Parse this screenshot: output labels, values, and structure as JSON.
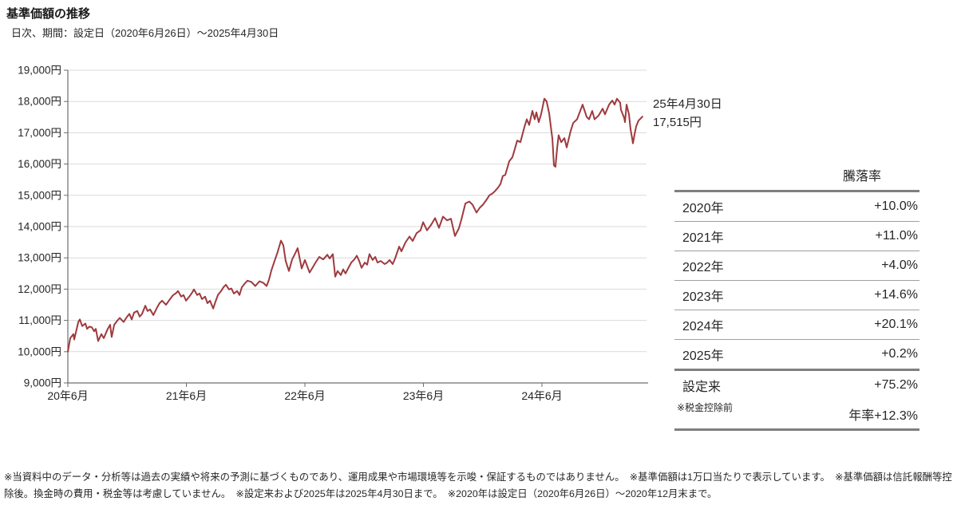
{
  "header": {
    "title": "基準価額の推移",
    "subtitle": "日次、期間：設定日（2020年6月26日）～2025年4月30日"
  },
  "annotation": {
    "date_line": "25年4月30日",
    "value_line": "17,515円"
  },
  "return_table": {
    "header": "騰落率",
    "rows": [
      {
        "label": "2020年",
        "value": "+10.0%"
      },
      {
        "label": "2021年",
        "value": "+11.0%"
      },
      {
        "label": "2022年",
        "value": "+4.0%"
      },
      {
        "label": "2023年",
        "value": "+14.6%"
      },
      {
        "label": "2024年",
        "value": "+20.1%"
      },
      {
        "label": "2025年",
        "value": "+0.2%"
      },
      {
        "label": "設定来",
        "value": "+75.2%"
      },
      {
        "label": "",
        "value": "年率+12.3%"
      }
    ],
    "footnote": "※税金控除前"
  },
  "disclaimer": "※当資料中のデータ・分析等は過去の実績や将来の予測に基づくものであり、運用成果や市場環境等を示唆・保証するものではありません。　※基準価額は1万口当たりで表示しています。　※基準価額は信託報酬等控除後。換金時の費用・税金等は考慮していません。　※設定来および2025年は2025年4月30日まで。　※2020年は設定日（2020年6月26日）～2020年12月末まで。",
  "chart_data": {
    "type": "line",
    "title": "基準価額の推移",
    "series_name": "基準価額（1万口当たり）",
    "unit": "円",
    "x_unit": "年（設定日 2020年6月26日 からの経過年数）",
    "xlim": [
      0,
      4.848
    ],
    "ylim": [
      9000,
      19000
    ],
    "grid": true,
    "line_color": "#9e3a3e",
    "grid_color": "#d9d9d9",
    "axis_color": "#6e6e6e",
    "x_ticks": [
      {
        "t": 0,
        "label": "20年6月"
      },
      {
        "t": 1,
        "label": "21年6月"
      },
      {
        "t": 2,
        "label": "22年6月"
      },
      {
        "t": 3,
        "label": "23年6月"
      },
      {
        "t": 4,
        "label": "24年6月"
      }
    ],
    "y_ticks": [
      {
        "value": 9000,
        "label": "9,000円"
      },
      {
        "value": 10000,
        "label": "10,000円"
      },
      {
        "value": 11000,
        "label": "11,000円"
      },
      {
        "value": 12000,
        "label": "12,000円"
      },
      {
        "value": 13000,
        "label": "13,000円"
      },
      {
        "value": 14000,
        "label": "14,000円"
      },
      {
        "value": 15000,
        "label": "15,000円"
      },
      {
        "value": 16000,
        "label": "16,000円"
      },
      {
        "value": 17000,
        "label": "17,000円"
      },
      {
        "value": 18000,
        "label": "18,000円"
      },
      {
        "value": 19000,
        "label": "19,000円"
      }
    ],
    "end_point": {
      "date": "25年4月30日",
      "value": 17515
    },
    "points": [
      [
        0,
        10000
      ],
      [
        0.02,
        10430
      ],
      [
        0.047,
        10560
      ],
      [
        0.054,
        10390
      ],
      [
        0.088,
        10950
      ],
      [
        0.101,
        11030
      ],
      [
        0.121,
        10820
      ],
      [
        0.148,
        10900
      ],
      [
        0.162,
        10730
      ],
      [
        0.182,
        10800
      ],
      [
        0.202,
        10780
      ],
      [
        0.222,
        10650
      ],
      [
        0.236,
        10730
      ],
      [
        0.256,
        10340
      ],
      [
        0.283,
        10560
      ],
      [
        0.303,
        10430
      ],
      [
        0.337,
        10730
      ],
      [
        0.357,
        10860
      ],
      [
        0.37,
        10470
      ],
      [
        0.391,
        10860
      ],
      [
        0.417,
        10990
      ],
      [
        0.438,
        11080
      ],
      [
        0.471,
        10950
      ],
      [
        0.492,
        11080
      ],
      [
        0.519,
        11210
      ],
      [
        0.539,
        11030
      ],
      [
        0.559,
        11250
      ],
      [
        0.586,
        11300
      ],
      [
        0.606,
        11120
      ],
      [
        0.626,
        11210
      ],
      [
        0.653,
        11470
      ],
      [
        0.673,
        11300
      ],
      [
        0.694,
        11350
      ],
      [
        0.721,
        11170
      ],
      [
        0.754,
        11420
      ],
      [
        0.774,
        11550
      ],
      [
        0.795,
        11630
      ],
      [
        0.828,
        11500
      ],
      [
        0.862,
        11680
      ],
      [
        0.889,
        11810
      ],
      [
        0.909,
        11860
      ],
      [
        0.929,
        11940
      ],
      [
        0.956,
        11760
      ],
      [
        0.976,
        11810
      ],
      [
        0.997,
        11630
      ],
      [
        1.024,
        11760
      ],
      [
        1.044,
        11860
      ],
      [
        1.064,
        11990
      ],
      [
        1.091,
        11810
      ],
      [
        1.111,
        11860
      ],
      [
        1.131,
        11680
      ],
      [
        1.158,
        11760
      ],
      [
        1.178,
        11550
      ],
      [
        1.199,
        11630
      ],
      [
        1.226,
        11380
      ],
      [
        1.246,
        11600
      ],
      [
        1.266,
        11810
      ],
      [
        1.293,
        11940
      ],
      [
        1.313,
        12060
      ],
      [
        1.333,
        12140
      ],
      [
        1.36,
        11990
      ],
      [
        1.38,
        12020
      ],
      [
        1.401,
        11860
      ],
      [
        1.428,
        11940
      ],
      [
        1.448,
        11810
      ],
      [
        1.468,
        12060
      ],
      [
        1.495,
        12190
      ],
      [
        1.515,
        12270
      ],
      [
        1.549,
        12230
      ],
      [
        1.582,
        12100
      ],
      [
        1.616,
        12250
      ],
      [
        1.65,
        12200
      ],
      [
        1.677,
        12100
      ],
      [
        1.697,
        12300
      ],
      [
        1.717,
        12600
      ],
      [
        1.744,
        12900
      ],
      [
        1.771,
        13200
      ],
      [
        1.798,
        13550
      ],
      [
        1.818,
        13400
      ],
      [
        1.838,
        12900
      ],
      [
        1.865,
        12580
      ],
      [
        1.892,
        12950
      ],
      [
        1.919,
        13150
      ],
      [
        1.939,
        13310
      ],
      [
        1.973,
        12660
      ],
      [
        2,
        12930
      ],
      [
        2.04,
        12530
      ],
      [
        2.067,
        12700
      ],
      [
        2.088,
        12840
      ],
      [
        2.121,
        13030
      ],
      [
        2.155,
        12950
      ],
      [
        2.189,
        13100
      ],
      [
        2.209,
        12980
      ],
      [
        2.236,
        13120
      ],
      [
        2.256,
        12400
      ],
      [
        2.276,
        12580
      ],
      [
        2.303,
        12450
      ],
      [
        2.323,
        12630
      ],
      [
        2.343,
        12500
      ],
      [
        2.37,
        12700
      ],
      [
        2.391,
        12850
      ],
      [
        2.417,
        12950
      ],
      [
        2.438,
        13070
      ],
      [
        2.458,
        12900
      ],
      [
        2.478,
        12680
      ],
      [
        2.505,
        12850
      ],
      [
        2.525,
        12780
      ],
      [
        2.545,
        13120
      ],
      [
        2.572,
        12930
      ],
      [
        2.593,
        13030
      ],
      [
        2.613,
        12850
      ],
      [
        2.64,
        12900
      ],
      [
        2.673,
        12800
      ],
      [
        2.694,
        12850
      ],
      [
        2.714,
        12930
      ],
      [
        2.741,
        12800
      ],
      [
        2.761,
        12980
      ],
      [
        2.795,
        13360
      ],
      [
        2.815,
        13210
      ],
      [
        2.848,
        13490
      ],
      [
        2.882,
        13680
      ],
      [
        2.909,
        13540
      ],
      [
        2.943,
        13790
      ],
      [
        2.976,
        13880
      ],
      [
        2.997,
        14140
      ],
      [
        3.03,
        13880
      ],
      [
        3.064,
        14050
      ],
      [
        3.098,
        14270
      ],
      [
        3.131,
        13960
      ],
      [
        3.165,
        14320
      ],
      [
        3.199,
        14200
      ],
      [
        3.232,
        14250
      ],
      [
        3.266,
        13700
      ],
      [
        3.3,
        13950
      ],
      [
        3.32,
        14220
      ],
      [
        3.354,
        14740
      ],
      [
        3.387,
        14800
      ],
      [
        3.414,
        14700
      ],
      [
        3.448,
        14450
      ],
      [
        3.475,
        14600
      ],
      [
        3.502,
        14700
      ],
      [
        3.535,
        14870
      ],
      [
        3.556,
        15000
      ],
      [
        3.583,
        15060
      ],
      [
        3.603,
        15130
      ],
      [
        3.63,
        15250
      ],
      [
        3.65,
        15360
      ],
      [
        3.67,
        15620
      ],
      [
        3.69,
        15650
      ],
      [
        3.71,
        15900
      ],
      [
        3.724,
        16090
      ],
      [
        3.751,
        16220
      ],
      [
        3.771,
        16480
      ],
      [
        3.791,
        16750
      ],
      [
        3.818,
        16700
      ],
      [
        3.852,
        17180
      ],
      [
        3.872,
        17430
      ],
      [
        3.892,
        17250
      ],
      [
        3.919,
        17700
      ],
      [
        3.939,
        17430
      ],
      [
        3.953,
        17650
      ],
      [
        3.973,
        17340
      ],
      [
        3.993,
        17600
      ],
      [
        4.02,
        18090
      ],
      [
        4.04,
        18000
      ],
      [
        4.061,
        17610
      ],
      [
        4.074,
        17220
      ],
      [
        4.088,
        16800
      ],
      [
        4.101,
        15960
      ],
      [
        4.114,
        15910
      ],
      [
        4.128,
        16500
      ],
      [
        4.141,
        16920
      ],
      [
        4.162,
        16700
      ],
      [
        4.189,
        16830
      ],
      [
        4.209,
        16530
      ],
      [
        4.242,
        17050
      ],
      [
        4.263,
        17310
      ],
      [
        4.296,
        17430
      ],
      [
        4.33,
        17770
      ],
      [
        4.343,
        17900
      ],
      [
        4.377,
        17510
      ],
      [
        4.397,
        17430
      ],
      [
        4.424,
        17700
      ],
      [
        4.444,
        17430
      ],
      [
        4.478,
        17550
      ],
      [
        4.512,
        17770
      ],
      [
        4.532,
        17590
      ],
      [
        4.566,
        17900
      ],
      [
        4.593,
        18030
      ],
      [
        4.613,
        17900
      ],
      [
        4.633,
        18090
      ],
      [
        4.66,
        17960
      ],
      [
        4.667,
        17730
      ],
      [
        4.694,
        17470
      ],
      [
        4.7,
        17340
      ],
      [
        4.714,
        17900
      ],
      [
        4.734,
        17590
      ],
      [
        4.747,
        17130
      ],
      [
        4.761,
        16820
      ],
      [
        4.768,
        16660
      ],
      [
        4.781,
        16950
      ],
      [
        4.795,
        17210
      ],
      [
        4.815,
        17390
      ],
      [
        4.828,
        17440
      ],
      [
        4.848,
        17515
      ]
    ]
  }
}
